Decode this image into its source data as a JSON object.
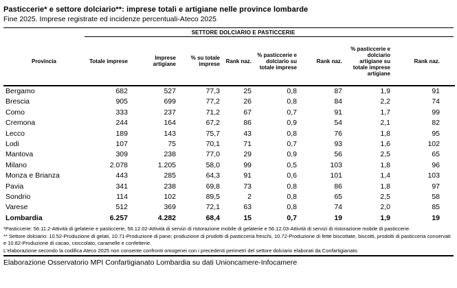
{
  "title": "Pasticcerie* e settore dolciario**: imprese totali e artigiane nelle province lombarde",
  "subtitle": "Fine 2025. Imprese registrate ed incidenze percentuali-Ateco 2025",
  "table": {
    "group_header": "SETTORE DOLCIARIO E PASTICCERIE",
    "columns": [
      "Provincia",
      "Totale imprese",
      "Imprese artigiane",
      "% su totale imprese",
      "Rank naz.",
      "% pasticcerie e dolciario su totale imprese",
      "Rank naz.",
      "% pasticcerie e dolciario artigiane su totale imprese artigiane",
      "Rank naz."
    ],
    "rows": [
      [
        "Bergamo",
        "682",
        "527",
        "77,3",
        "25",
        "0,8",
        "87",
        "1,9",
        "91"
      ],
      [
        "Brescia",
        "905",
        "699",
        "77,2",
        "26",
        "0,8",
        "84",
        "2,2",
        "74"
      ],
      [
        "Como",
        "333",
        "237",
        "71,2",
        "67",
        "0,7",
        "91",
        "1,7",
        "99"
      ],
      [
        "Cremona",
        "244",
        "164",
        "67,2",
        "86",
        "0,9",
        "54",
        "2,1",
        "82"
      ],
      [
        "Lecco",
        "189",
        "143",
        "75,7",
        "43",
        "0,8",
        "76",
        "1,8",
        "95"
      ],
      [
        "Lodi",
        "107",
        "75",
        "70,1",
        "71",
        "0,7",
        "93",
        "1,6",
        "102"
      ],
      [
        "Mantova",
        "309",
        "238",
        "77,0",
        "29",
        "0,9",
        "56",
        "2,5",
        "65"
      ],
      [
        "Milano",
        "2.078",
        "1.205",
        "58,0",
        "99",
        "0,5",
        "103",
        "1,8",
        "96"
      ],
      [
        "Monza e Brianza",
        "443",
        "285",
        "64,3",
        "91",
        "0,6",
        "101",
        "1,4",
        "103"
      ],
      [
        "Pavia",
        "341",
        "238",
        "69,8",
        "73",
        "0,8",
        "86",
        "1,8",
        "97"
      ],
      [
        "Sondrio",
        "114",
        "102",
        "89,5",
        "2",
        "0,8",
        "65",
        "2,5",
        "58"
      ],
      [
        "Varese",
        "512",
        "369",
        "72,1",
        "63",
        "0,8",
        "74",
        "2,0",
        "85"
      ]
    ],
    "total_row": [
      "Lombardia",
      "6.257",
      "4.282",
      "68,4",
      "15",
      "0,7",
      "19",
      "1,9",
      "19"
    ]
  },
  "footnotes": [
    "*Pasticcerie: 56.11.2-Attività di gelaterie e pasticcerie, 56.12.02-Attività di servizi di ristorazione mobile di gelaterie e 56.12.03-Attività di servizi di ristorazione mobile di pasticcerie.",
    "** Settore dolciario: 10.52-Produzione di gelati, 10.71-Produzione di pane; produzione di prodotti di pasticceria freschi, 10.72-Produzione di fette biscottate, biscotti, prodotti di pasticceria conservati e 10.82-Produzione di cacao, cioccolato, caramelle e confetterie.",
    "L'elaborazione secondo la codifica Ateco 2025 non consente confronti omogenei con i precedenti perimetri del settore dolciario elaborati da Confartigianato."
  ],
  "source": "Elaborazione Osservatorio MPI Confartigianato Lombardia su dati Unioncamere-Infocamere"
}
